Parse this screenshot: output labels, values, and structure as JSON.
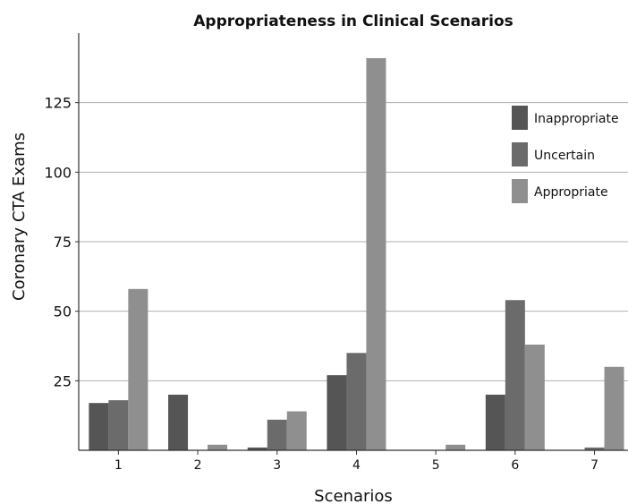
{
  "chart_data": {
    "type": "bar",
    "title": "Appropriateness in Clinical Scenarios",
    "xlabel": "Scenarios",
    "ylabel": "Coronary CTA Exams",
    "categories": [
      "1",
      "2",
      "3",
      "4",
      "5",
      "6",
      "7"
    ],
    "series": [
      {
        "name": "Inappropriate",
        "color": "#555555",
        "values": [
          17,
          20,
          1,
          27,
          0,
          20,
          0
        ]
      },
      {
        "name": "Uncertain",
        "color": "#6b6b6b",
        "values": [
          18,
          0,
          11,
          35,
          0,
          54,
          1
        ]
      },
      {
        "name": "Appropriate",
        "color": "#8f8f8f",
        "values": [
          58,
          2,
          14,
          141,
          2,
          38,
          30
        ]
      }
    ],
    "yticks": [
      25,
      50,
      75,
      100,
      125
    ],
    "ylim": [
      0,
      150
    ],
    "grid": true,
    "legend_position": "top-right"
  }
}
